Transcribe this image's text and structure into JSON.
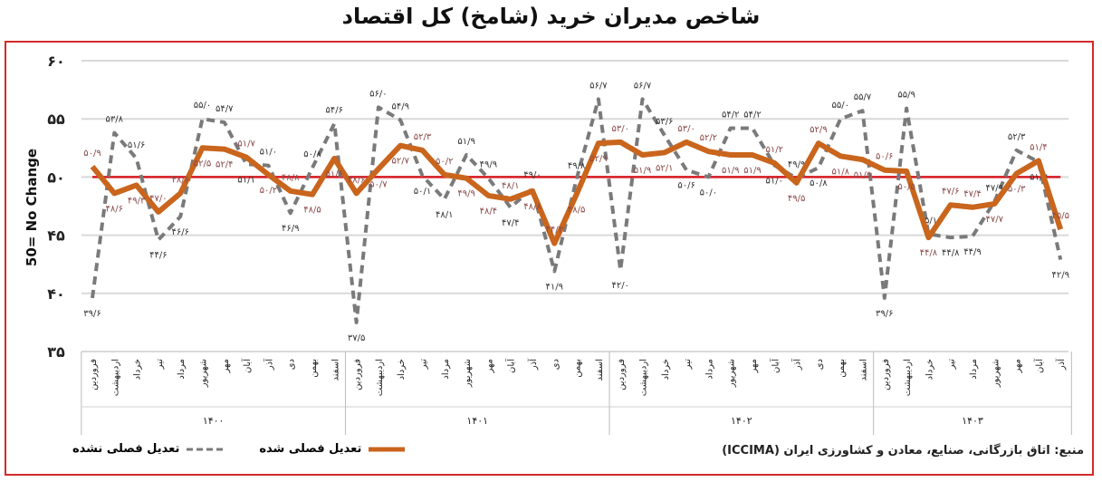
{
  "title": "شاخص مدیران خرید (شامخ) کل اقتصاد",
  "source": "منبع: اتاق بازرگانی، صنایع، معادن و کشاورزی ایران (ICCIMA)",
  "colors": {
    "adjusted": "#c9651c",
    "unadjusted": "#7a7a7a",
    "reference": "#d71920",
    "frame": "#d42a2a"
  },
  "chart_data": {
    "type": "line",
    "title": "شاخص مدیران خرید (شامخ) کل اقتصاد",
    "ylabel": "50= No Change",
    "ylim": [
      35,
      60
    ],
    "yticks": [
      60,
      55,
      50,
      45,
      40,
      35
    ],
    "ytick_labels": [
      "۶۰",
      "۵۵",
      "۵۰",
      "۴۵",
      "۴۰",
      "۳۵"
    ],
    "reference_line": 50,
    "grid": true,
    "legend_position": "bottom-left",
    "years": [
      {
        "label": "۱۴۰۰",
        "months": 12
      },
      {
        "label": "۱۴۰۱",
        "months": 12
      },
      {
        "label": "۱۴۰۲",
        "months": 12
      },
      {
        "label": "۱۴۰۳",
        "months": 9
      }
    ],
    "categories": [
      "فروردین",
      "اردیبهشت",
      "خرداد",
      "تیر",
      "مرداد",
      "شهریور",
      "مهر",
      "آبان",
      "آذر",
      "دی",
      "بهمن",
      "اسفند",
      "فروردین",
      "اردیبهشت",
      "خرداد",
      "تیر",
      "مرداد",
      "شهریور",
      "مهر",
      "آبان",
      "آذر",
      "دی",
      "بهمن",
      "اسفند",
      "فروردین",
      "اردیبهشت",
      "خرداد",
      "تیر",
      "مرداد",
      "شهریور",
      "مهر",
      "آبان",
      "آذر",
      "دی",
      "بهمن",
      "اسفند",
      "فروردین",
      "اردیبهشت",
      "خرداد",
      "تیر",
      "مرداد",
      "شهریور",
      "مهر",
      "آبان",
      "آذر"
    ],
    "series": [
      {
        "name": "تعدیل فصلی شده",
        "style": "solid",
        "values": [
          50.9,
          48.6,
          49.3,
          47.0,
          48.6,
          52.5,
          52.4,
          51.7,
          50.2,
          48.8,
          48.5,
          51.6,
          48.6,
          50.7,
          52.7,
          52.3,
          50.2,
          49.9,
          48.4,
          48.1,
          48.8,
          44.3,
          48.5,
          52.9,
          53.0,
          51.9,
          52.1,
          53.0,
          52.2,
          51.9,
          51.9,
          51.2,
          49.5,
          52.9,
          51.8,
          51.5,
          50.6,
          50.5,
          44.8,
          47.6,
          47.4,
          47.7,
          50.3,
          51.4,
          45.5
        ]
      },
      {
        "name": "تعدیل فصلی نشده",
        "style": "dashed",
        "values": [
          39.6,
          53.8,
          51.6,
          44.6,
          46.6,
          55.0,
          54.7,
          51.1,
          51.0,
          46.9,
          50.8,
          54.6,
          37.5,
          56.0,
          54.9,
          50.1,
          48.1,
          51.9,
          49.9,
          47.4,
          49.0,
          41.9,
          49.8,
          56.7,
          42.0,
          56.7,
          53.6,
          50.6,
          50.0,
          54.2,
          54.2,
          51.0,
          49.9,
          50.8,
          55.0,
          55.7,
          39.6,
          55.9,
          45.1,
          44.8,
          44.9,
          47.9,
          52.3,
          51.3,
          42.9
        ]
      }
    ]
  }
}
